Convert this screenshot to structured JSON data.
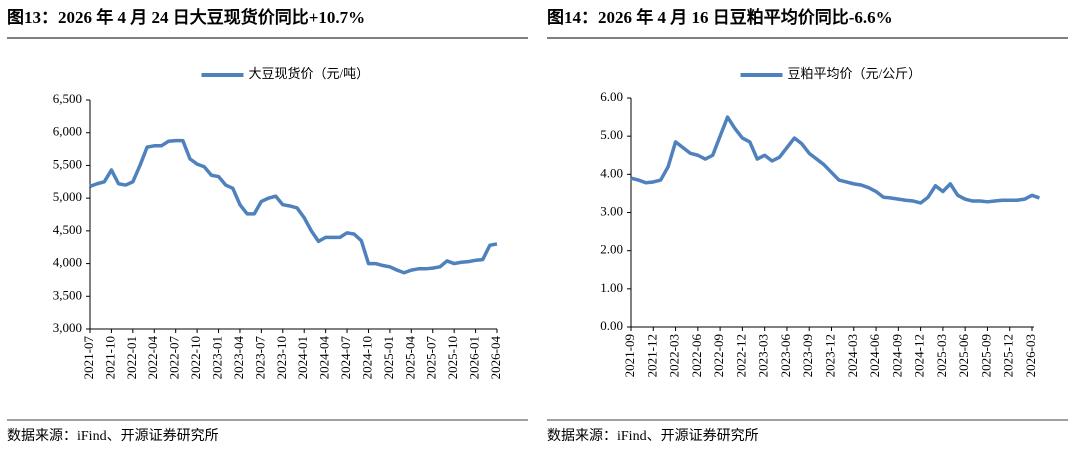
{
  "chart_data": [
    {
      "type": "line",
      "title": "图13：2026 年 4 月 24 日大豆现货价同比+10.7%",
      "source": "数据来源：iFind、开源证券研究所",
      "categories": [
        "2021-07",
        null,
        null,
        "2021-10",
        null,
        null,
        "2022-01",
        null,
        null,
        "2022-04",
        null,
        null,
        "2022-07",
        null,
        null,
        "2022-10",
        null,
        null,
        "2023-01",
        null,
        null,
        "2023-04",
        null,
        null,
        "2023-07",
        null,
        null,
        "2023-10",
        null,
        null,
        "2024-01",
        null,
        null,
        "2024-04",
        null,
        null,
        "2024-07",
        null,
        null,
        "2024-10",
        null,
        null,
        "2025-01",
        null,
        null,
        "2025-04",
        null,
        null,
        "2025-07",
        null,
        null,
        "2025-10",
        null,
        null,
        "2026-01",
        null,
        null,
        "2026-04"
      ],
      "series": [
        {
          "name": "大豆现货价（元/吨）",
          "color": "#4f81bd",
          "values": [
            5180,
            5220,
            5250,
            5430,
            5220,
            5200,
            5250,
            5500,
            5780,
            5800,
            5800,
            5870,
            5880,
            5880,
            5600,
            5520,
            5480,
            5350,
            5330,
            5200,
            5150,
            4900,
            4760,
            4760,
            4950,
            5000,
            5030,
            4900,
            4880,
            4850,
            4700,
            4500,
            4340,
            4400,
            4400,
            4400,
            4470,
            4450,
            4350,
            4000,
            4000,
            3970,
            3950,
            3900,
            3860,
            3900,
            3920,
            3920,
            3930,
            3950,
            4040,
            4000,
            4020,
            4030,
            4050,
            4060,
            4280,
            4300
          ]
        }
      ],
      "ylim": [
        3000,
        6500
      ],
      "yticks": [
        {
          "value": 3000,
          "label": "3,000"
        },
        {
          "value": 3500,
          "label": "3,500"
        },
        {
          "value": 4000,
          "label": "4,000"
        },
        {
          "value": 4500,
          "label": "4,500"
        },
        {
          "value": 5000,
          "label": "5,000"
        },
        {
          "value": 5500,
          "label": "5,500"
        },
        {
          "value": 6000,
          "label": "6,000"
        },
        {
          "value": 6500,
          "label": "6,500"
        }
      ],
      "legend": "top"
    },
    {
      "type": "line",
      "title": "图14：2026 年 4 月 16 日豆粕平均价同比-6.6%",
      "source": "数据来源：iFind、开源证券研究所",
      "categories": [
        "2021-09",
        null,
        null,
        "2021-12",
        null,
        null,
        "2022-03",
        null,
        null,
        "2022-06",
        null,
        null,
        "2022-09",
        null,
        null,
        "2022-12",
        null,
        null,
        "2023-03",
        null,
        null,
        "2023-06",
        null,
        null,
        "2023-09",
        null,
        null,
        "2023-12",
        null,
        null,
        "2024-03",
        null,
        null,
        "2024-06",
        null,
        null,
        "2024-09",
        null,
        null,
        "2024-12",
        null,
        null,
        "2025-03",
        null,
        null,
        "2025-06",
        null,
        null,
        "2025-09",
        null,
        null,
        "2025-12",
        null,
        null,
        "2026-03",
        null
      ],
      "series": [
        {
          "name": "豆粕平均价（元/公斤）",
          "color": "#4f81bd",
          "values": [
            3.9,
            3.85,
            3.78,
            3.8,
            3.85,
            4.2,
            4.85,
            4.7,
            4.55,
            4.5,
            4.4,
            4.5,
            5.0,
            5.5,
            5.2,
            4.95,
            4.85,
            4.4,
            4.5,
            4.35,
            4.45,
            4.7,
            4.95,
            4.8,
            4.55,
            4.4,
            4.25,
            4.05,
            3.85,
            3.8,
            3.75,
            3.72,
            3.65,
            3.55,
            3.4,
            3.38,
            3.35,
            3.32,
            3.3,
            3.25,
            3.4,
            3.7,
            3.55,
            3.75,
            3.45,
            3.35,
            3.3,
            3.3,
            3.28,
            3.3,
            3.32,
            3.32,
            3.32,
            3.35,
            3.45,
            3.38
          ]
        }
      ],
      "ylim": [
        0,
        6
      ],
      "yticks": [
        {
          "value": 0,
          "label": "0.00"
        },
        {
          "value": 1,
          "label": "1.00"
        },
        {
          "value": 2,
          "label": "2.00"
        },
        {
          "value": 3,
          "label": "3.00"
        },
        {
          "value": 4,
          "label": "4.00"
        },
        {
          "value": 5,
          "label": "5.00"
        },
        {
          "value": 6,
          "label": "6.00"
        }
      ],
      "legend": "top"
    }
  ]
}
